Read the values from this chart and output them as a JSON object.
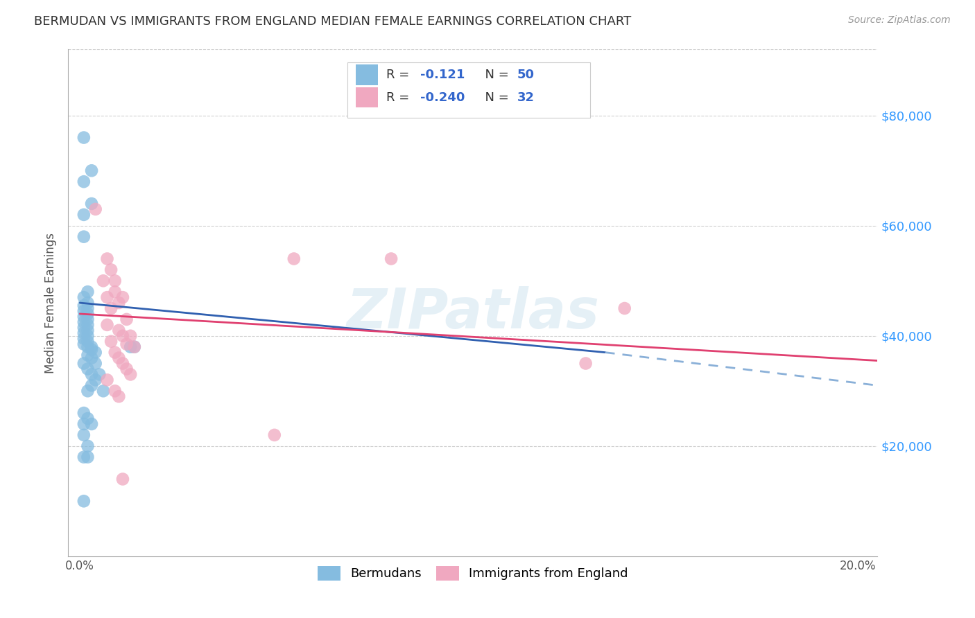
{
  "title": "BERMUDAN VS IMMIGRANTS FROM ENGLAND MEDIAN FEMALE EARNINGS CORRELATION CHART",
  "source": "Source: ZipAtlas.com",
  "ylabel": "Median Female Earnings",
  "xlim": [
    -0.003,
    0.205
  ],
  "ylim": [
    0,
    92000
  ],
  "yticks": [
    20000,
    40000,
    60000,
    80000
  ],
  "ytick_labels": [
    "$20,000",
    "$40,000",
    "$60,000",
    "$80,000"
  ],
  "xticks": [
    0.0,
    0.05,
    0.1,
    0.15,
    0.2
  ],
  "xtick_labels": [
    "0.0%",
    "",
    "",
    "",
    "20.0%"
  ],
  "watermark": "ZIPatlas",
  "blue_scatter_x": [
    0.001,
    0.003,
    0.001,
    0.003,
    0.001,
    0.001,
    0.002,
    0.001,
    0.002,
    0.001,
    0.002,
    0.001,
    0.002,
    0.001,
    0.002,
    0.001,
    0.002,
    0.001,
    0.002,
    0.001,
    0.002,
    0.001,
    0.002,
    0.001,
    0.002,
    0.003,
    0.003,
    0.004,
    0.002,
    0.003,
    0.001,
    0.004,
    0.002,
    0.003,
    0.005,
    0.004,
    0.003,
    0.002,
    0.006,
    0.001,
    0.002,
    0.001,
    0.003,
    0.001,
    0.002,
    0.001,
    0.002,
    0.013,
    0.014,
    0.001
  ],
  "blue_scatter_y": [
    76000,
    70000,
    68000,
    64000,
    62000,
    58000,
    48000,
    47000,
    46000,
    45500,
    45000,
    44500,
    44000,
    43500,
    43000,
    42500,
    42000,
    41500,
    41000,
    40500,
    40000,
    39500,
    39000,
    38500,
    38000,
    38000,
    37500,
    37000,
    36500,
    36000,
    35000,
    35000,
    34000,
    33000,
    33000,
    32000,
    31000,
    30000,
    30000,
    26000,
    25000,
    24000,
    24000,
    22000,
    20000,
    18000,
    18000,
    38000,
    38000,
    10000
  ],
  "pink_scatter_x": [
    0.004,
    0.007,
    0.008,
    0.006,
    0.009,
    0.009,
    0.007,
    0.011,
    0.01,
    0.008,
    0.012,
    0.007,
    0.01,
    0.011,
    0.013,
    0.008,
    0.012,
    0.014,
    0.009,
    0.01,
    0.011,
    0.012,
    0.013,
    0.007,
    0.009,
    0.01,
    0.011,
    0.055,
    0.08,
    0.13,
    0.14,
    0.05
  ],
  "pink_scatter_y": [
    63000,
    54000,
    52000,
    50000,
    50000,
    48000,
    47000,
    47000,
    46000,
    45000,
    43000,
    42000,
    41000,
    40000,
    40000,
    39000,
    38500,
    38000,
    37000,
    36000,
    35000,
    34000,
    33000,
    32000,
    30000,
    29000,
    14000,
    54000,
    54000,
    35000,
    45000,
    22000
  ],
  "blue_line": {
    "x0": 0.0,
    "y0": 46000,
    "x1": 0.135,
    "y1": 37000,
    "x1_dash": 0.135,
    "y1_dash": 37000,
    "x2_dash": 0.205,
    "y2_dash": 31000
  },
  "pink_line": {
    "x0": 0.0,
    "y0": 44000,
    "x1": 0.205,
    "y1": 35500
  },
  "blue_color": "#85bce0",
  "pink_color": "#f0a8c0",
  "blue_line_color": "#3060b0",
  "pink_line_color": "#e04070",
  "blue_dash_color": "#8ab0d8",
  "grid_color": "#d0d0d0",
  "r_values": [
    "-0.121",
    "-0.240"
  ],
  "n_values": [
    "50",
    "32"
  ]
}
